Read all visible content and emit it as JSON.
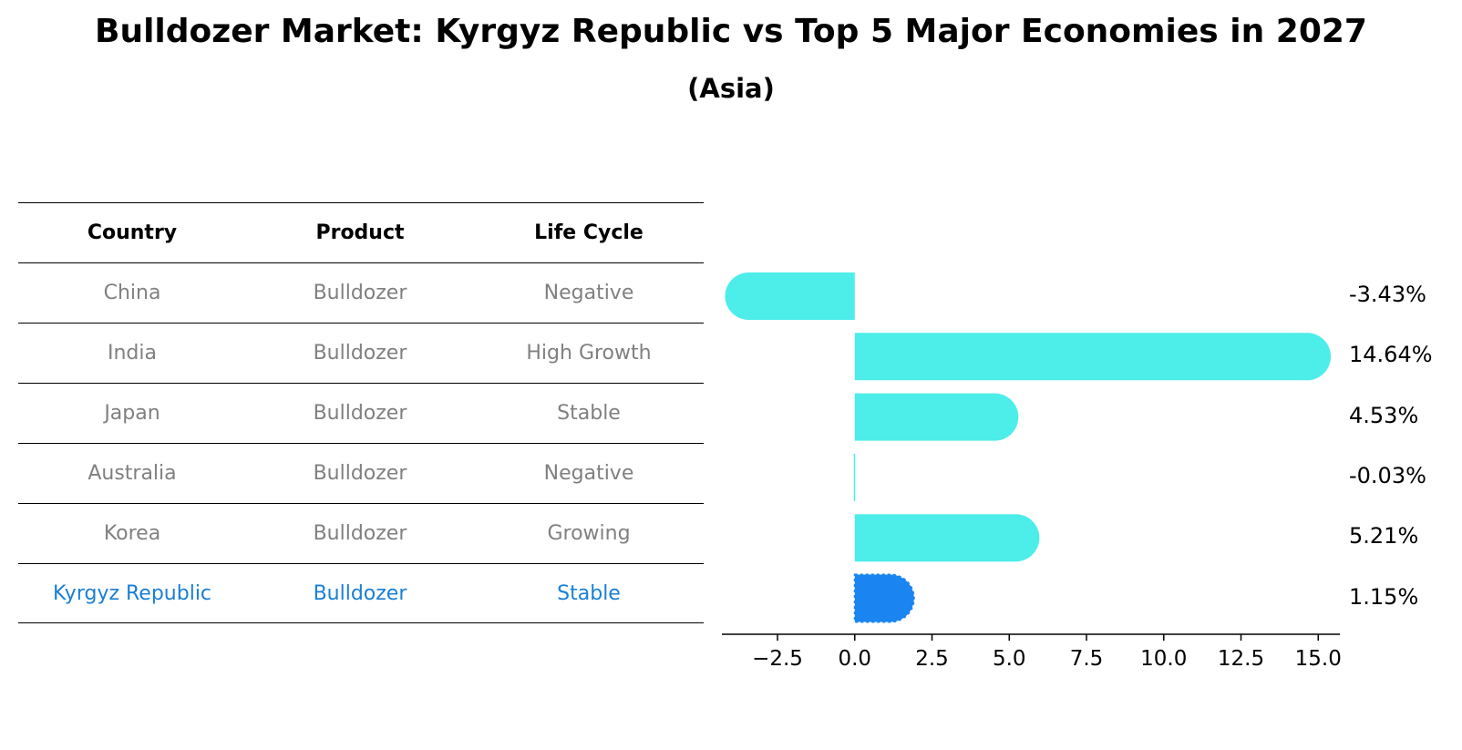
{
  "title": "Bulldozer Market: Kyrgyz Republic vs Top 5 Major Economies in 2027",
  "subtitle": "(Asia)",
  "table": {
    "headers": [
      "Country",
      "Product",
      "Life Cycle"
    ],
    "rows": [
      [
        "China",
        "Bulldozer",
        "Negative"
      ],
      [
        "India",
        "Bulldozer",
        "High Growth"
      ],
      [
        "Japan",
        "Bulldozer",
        "Stable"
      ],
      [
        "Australia",
        "Bulldozer",
        "Negative"
      ],
      [
        "Korea",
        "Bulldozer",
        "Growing"
      ],
      [
        "Kyrgyz Republic",
        "Bulldozer",
        "Stable"
      ]
    ]
  },
  "chart_data": {
    "type": "bar",
    "orientation": "horizontal",
    "categories": [
      "China",
      "India",
      "Japan",
      "Australia",
      "Korea",
      "Kyrgyz Republic"
    ],
    "values": [
      -3.43,
      14.64,
      4.53,
      -0.03,
      5.21,
      1.15
    ],
    "value_labels": [
      "-3.43%",
      "14.64%",
      "4.53%",
      "-0.03%",
      "5.21%",
      "1.15%"
    ],
    "xlim": [
      -4.3,
      15.7
    ],
    "xticks": [
      -2.5,
      0.0,
      2.5,
      5.0,
      7.5,
      10.0,
      12.5,
      15.0
    ],
    "xtick_labels": [
      "−2.5",
      "0.0",
      "2.5",
      "5.0",
      "7.5",
      "10.0",
      "12.5",
      "15.0"
    ],
    "highlight": "Kyrgyz Republic",
    "colors": {
      "bar": "#4dede9",
      "highlight": "#1a85f0"
    }
  }
}
